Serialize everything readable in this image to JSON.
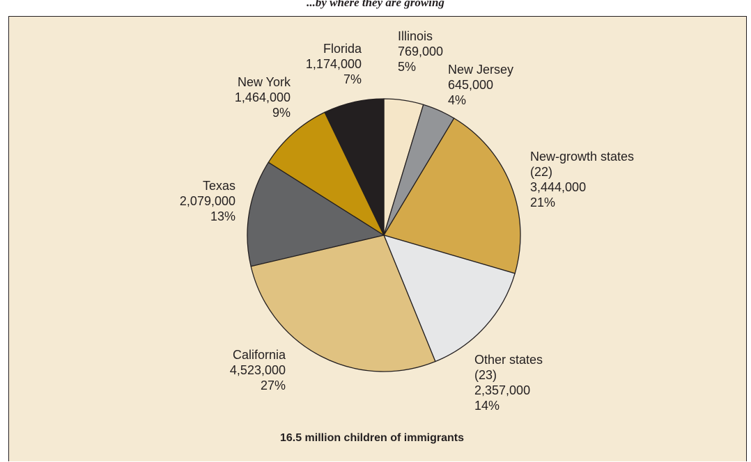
{
  "page": {
    "title": "...by where they are growing"
  },
  "chart_data": {
    "type": "pie",
    "title": "",
    "caption": "16.5 million children of immigrants",
    "start_angle_deg": 0,
    "direction": "clockwise",
    "slices": [
      {
        "label": [
          "Illinois"
        ],
        "value": 769000,
        "value_text": "769,000",
        "percent": "5%",
        "color": "#f5e6c8"
      },
      {
        "label": [
          "New Jersey"
        ],
        "value": 645000,
        "value_text": "645,000",
        "percent": "4%",
        "color": "#939598"
      },
      {
        "label": [
          "New-growth states",
          "(22)"
        ],
        "value": 3444000,
        "value_text": "3,444,000",
        "percent": "21%",
        "color": "#d4a94a"
      },
      {
        "label": [
          "Other states",
          "(23)"
        ],
        "value": 2357000,
        "value_text": "2,357,000",
        "percent": "14%",
        "color": "#e6e7e8"
      },
      {
        "label": [
          "California"
        ],
        "value": 4523000,
        "value_text": "4,523,000",
        "percent": "27%",
        "color": "#e0c281"
      },
      {
        "label": [
          "Texas"
        ],
        "value": 2079000,
        "value_text": "2,079,000",
        "percent": "13%",
        "color": "#636466"
      },
      {
        "label": [
          "New York"
        ],
        "value": 1464000,
        "value_text": "1,464,000",
        "percent": "9%",
        "color": "#c4940c"
      },
      {
        "label": [
          "Florida"
        ],
        "value": 1174000,
        "value_text": "1,174,000",
        "percent": "7%",
        "color": "#231f20"
      }
    ]
  }
}
